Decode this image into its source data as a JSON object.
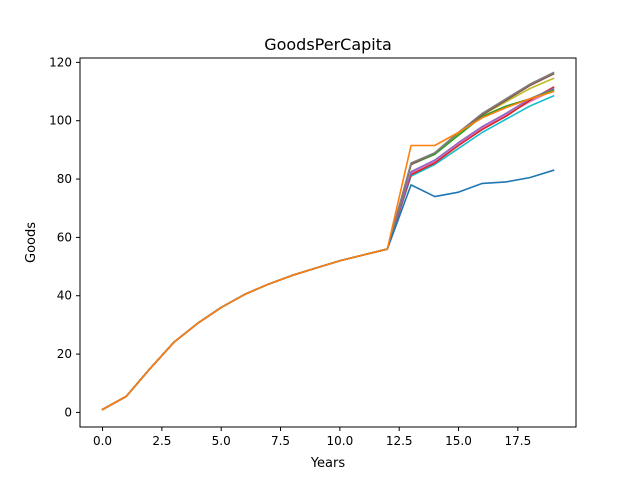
{
  "chart_data": {
    "type": "line",
    "title": "GoodsPerCapita",
    "xlabel": "Years",
    "ylabel": "Goods",
    "xlim": [
      -0.95,
      19.95
    ],
    "ylim": [
      -5.0,
      121.5
    ],
    "xticks": [
      0,
      2.5,
      5,
      7.5,
      10,
      12.5,
      15,
      17.5
    ],
    "xtick_labels": [
      "0.0",
      "2.5",
      "5.0",
      "7.5",
      "10.0",
      "12.5",
      "15.0",
      "17.5"
    ],
    "yticks": [
      0,
      20,
      40,
      60,
      80,
      100,
      120
    ],
    "ytick_labels": [
      "0",
      "20",
      "40",
      "60",
      "80",
      "100",
      "120"
    ],
    "grid": false,
    "legend": "none",
    "x": [
      0,
      1,
      2,
      3,
      4,
      5,
      6,
      7,
      8,
      9,
      10,
      11,
      12,
      13,
      14,
      15,
      16,
      17,
      18,
      19
    ],
    "series": [
      {
        "color": "#17becf",
        "values": [
          1,
          5.5,
          15,
          24,
          30.5,
          36,
          40.5,
          44,
          47,
          49.5,
          52,
          54,
          56,
          81,
          85,
          90.5,
          96,
          100.5,
          105,
          108.5
        ]
      },
      {
        "color": "#e377c2",
        "values": [
          1,
          5.5,
          15,
          24,
          30.5,
          36,
          40.5,
          44,
          47,
          49.5,
          52,
          54,
          56,
          82,
          86,
          92,
          97.5,
          102,
          106.5,
          110.5
        ]
      },
      {
        "color": "#d62728",
        "values": [
          1,
          5.5,
          15,
          24,
          30.5,
          36,
          40.5,
          44,
          47,
          49.5,
          52,
          54,
          56,
          81.5,
          85.5,
          91.5,
          97,
          101.5,
          107,
          111.5
        ]
      },
      {
        "color": "#9467bd",
        "values": [
          1,
          5.5,
          15,
          24,
          30.5,
          36,
          40.5,
          44,
          47,
          49.5,
          52,
          54,
          56,
          82.5,
          86.5,
          92.5,
          98,
          102.5,
          107.5,
          111
        ]
      },
      {
        "color": "#bcbd22",
        "values": [
          1,
          5.5,
          15,
          24,
          30.5,
          36,
          40.5,
          44,
          47,
          49.5,
          52,
          54,
          56,
          85,
          88.5,
          95.5,
          102,
          106.5,
          111,
          114.5
        ]
      },
      {
        "color": "#2ca02c",
        "values": [
          1,
          5.5,
          15,
          24,
          30.5,
          36,
          40.5,
          44,
          47,
          49.5,
          52,
          54,
          56,
          85,
          88.5,
          95,
          101.5,
          105,
          107.5,
          110.5
        ]
      },
      {
        "color": "#8c564b",
        "values": [
          1,
          5.5,
          15,
          24,
          30.5,
          36,
          40.5,
          44,
          47,
          49.5,
          52,
          54,
          56,
          85,
          89,
          96,
          102,
          107,
          112,
          116
        ]
      },
      {
        "color": "#7f7f7f",
        "values": [
          1,
          5.5,
          15,
          24,
          30.5,
          36,
          40.5,
          44,
          47,
          49.5,
          52,
          54,
          56,
          85.5,
          89,
          96,
          102.5,
          107.5,
          112.5,
          116.5
        ]
      },
      {
        "color": "#1f77b4",
        "values": [
          1,
          5.5,
          15,
          24,
          30.5,
          36,
          40.5,
          44,
          47,
          49.5,
          52,
          54,
          56,
          78,
          74,
          75.5,
          78.5,
          79,
          80.5,
          83
        ]
      },
      {
        "color": "#ff7f0e",
        "values": [
          1,
          5.5,
          15,
          24,
          30.5,
          36,
          40.5,
          44,
          47,
          49.5,
          52,
          54,
          56,
          91.5,
          91.5,
          96,
          101,
          104.5,
          107.5,
          110
        ]
      }
    ]
  }
}
